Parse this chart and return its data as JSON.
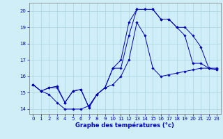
{
  "xlabel": "Graphe des températures (°c)",
  "xlim": [
    -0.5,
    23.5
  ],
  "ylim": [
    13.7,
    20.5
  ],
  "yticks": [
    14,
    15,
    16,
    17,
    18,
    19,
    20
  ],
  "xticks": [
    0,
    1,
    2,
    3,
    4,
    5,
    6,
    7,
    8,
    9,
    10,
    11,
    12,
    13,
    14,
    15,
    16,
    17,
    18,
    19,
    20,
    21,
    22,
    23
  ],
  "bg_color": "#d0eef8",
  "line_color": "#0000bb",
  "line1_y": [
    15.5,
    15.1,
    14.9,
    14.4,
    14.0,
    14.0,
    14.0,
    14.2,
    14.9,
    15.3,
    15.5,
    16.0,
    17.0,
    19.3,
    18.5,
    16.5,
    16.0,
    16.1,
    16.2,
    16.3,
    16.4,
    16.5,
    16.5,
    16.4
  ],
  "line2_y": [
    15.5,
    15.1,
    15.3,
    15.3,
    14.4,
    15.1,
    15.2,
    14.1,
    14.9,
    15.3,
    16.5,
    16.5,
    18.5,
    20.1,
    20.1,
    20.1,
    19.5,
    19.5,
    19.0,
    18.5,
    16.8,
    16.8,
    16.5,
    16.4
  ],
  "line3_y": [
    15.5,
    15.1,
    15.3,
    15.4,
    14.4,
    15.1,
    15.2,
    14.1,
    14.9,
    15.3,
    16.5,
    17.0,
    19.3,
    20.1,
    20.1,
    20.1,
    19.5,
    19.5,
    19.0,
    19.0,
    18.5,
    17.8,
    16.5,
    16.5
  ],
  "grid_color": "#aad4dd",
  "tick_fontsize": 5.0,
  "xlabel_fontsize": 6.0
}
